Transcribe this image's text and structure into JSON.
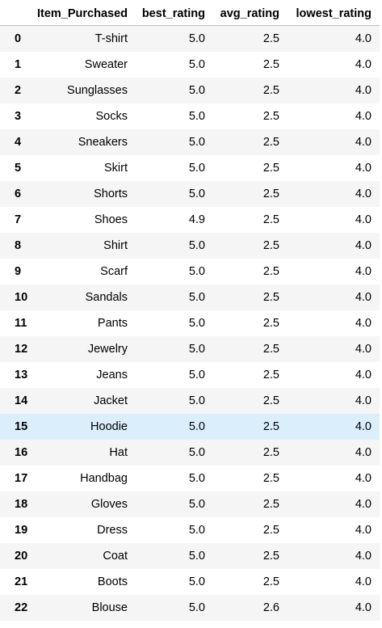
{
  "table": {
    "columns": [
      "",
      "Item_Purchased",
      "best_rating",
      "avg_rating",
      "lowest_rating"
    ],
    "highlighted_row": 15,
    "rows": [
      [
        "0",
        "T-shirt",
        "5.0",
        "2.5",
        "4.0"
      ],
      [
        "1",
        "Sweater",
        "5.0",
        "2.5",
        "4.0"
      ],
      [
        "2",
        "Sunglasses",
        "5.0",
        "2.5",
        "4.0"
      ],
      [
        "3",
        "Socks",
        "5.0",
        "2.5",
        "4.0"
      ],
      [
        "4",
        "Sneakers",
        "5.0",
        "2.5",
        "4.0"
      ],
      [
        "5",
        "Skirt",
        "5.0",
        "2.5",
        "4.0"
      ],
      [
        "6",
        "Shorts",
        "5.0",
        "2.5",
        "4.0"
      ],
      [
        "7",
        "Shoes",
        "4.9",
        "2.5",
        "4.0"
      ],
      [
        "8",
        "Shirt",
        "5.0",
        "2.5",
        "4.0"
      ],
      [
        "9",
        "Scarf",
        "5.0",
        "2.5",
        "4.0"
      ],
      [
        "10",
        "Sandals",
        "5.0",
        "2.5",
        "4.0"
      ],
      [
        "11",
        "Pants",
        "5.0",
        "2.5",
        "4.0"
      ],
      [
        "12",
        "Jewelry",
        "5.0",
        "2.5",
        "4.0"
      ],
      [
        "13",
        "Jeans",
        "5.0",
        "2.5",
        "4.0"
      ],
      [
        "14",
        "Jacket",
        "5.0",
        "2.5",
        "4.0"
      ],
      [
        "15",
        "Hoodie",
        "5.0",
        "2.5",
        "4.0"
      ],
      [
        "16",
        "Hat",
        "5.0",
        "2.5",
        "4.0"
      ],
      [
        "17",
        "Handbag",
        "5.0",
        "2.5",
        "4.0"
      ],
      [
        "18",
        "Gloves",
        "5.0",
        "2.5",
        "4.0"
      ],
      [
        "19",
        "Dress",
        "5.0",
        "2.5",
        "4.0"
      ],
      [
        "20",
        "Coat",
        "5.0",
        "2.5",
        "4.0"
      ],
      [
        "21",
        "Boots",
        "5.0",
        "2.5",
        "4.0"
      ],
      [
        "22",
        "Blouse",
        "5.0",
        "2.6",
        "4.0"
      ]
    ]
  }
}
